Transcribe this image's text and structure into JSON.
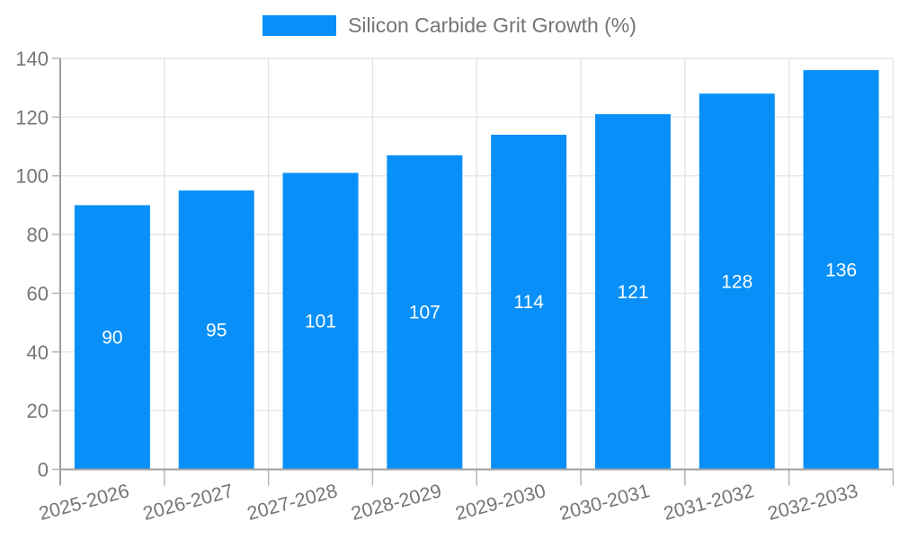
{
  "chart_data": {
    "type": "bar",
    "title": "",
    "legend_position": "top",
    "categories": [
      "2025-2026",
      "2026-2027",
      "2027-2028",
      "2028-2029",
      "2029-2030",
      "2030-2031",
      "2031-2032",
      "2032-2033"
    ],
    "series": [
      {
        "name": "Silicon Carbide Grit Growth (%)",
        "values": [
          90,
          95,
          101,
          107,
          114,
          121,
          128,
          136
        ]
      }
    ],
    "ylim": [
      0,
      140
    ],
    "yticks": [
      0,
      20,
      40,
      60,
      80,
      100,
      120,
      140
    ],
    "grid": true,
    "bar_color": "#0890F8",
    "value_label_color": "#ffffff",
    "axis_text_color": "#757575",
    "grid_color": "#e4e4e4",
    "axis_line_color": "#9e9e9e",
    "tick_color": "#b5b5b5"
  }
}
